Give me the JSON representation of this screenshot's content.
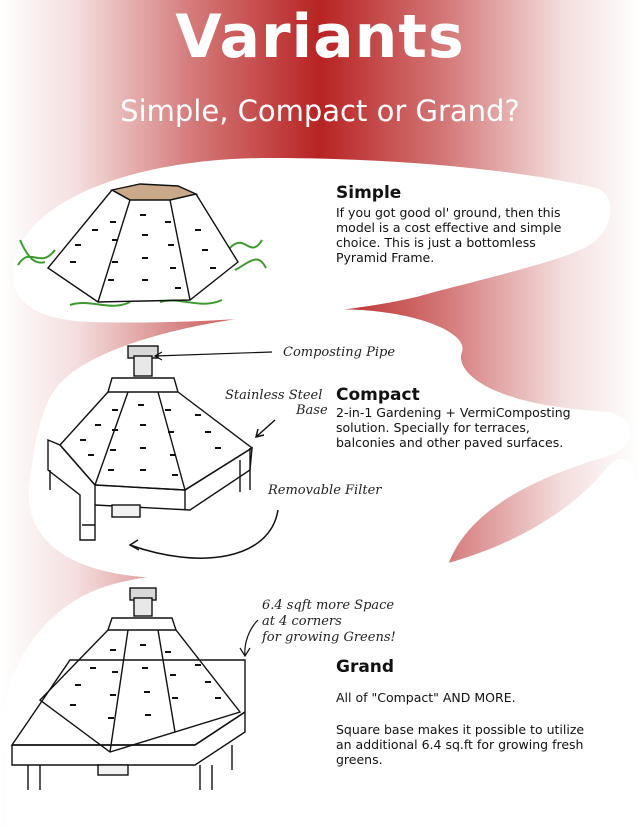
{
  "page": {
    "title": "Variants",
    "subtitle": "Simple, Compact or Grand?"
  },
  "simple": {
    "heading": "Simple",
    "description": "If you got good ol' ground, then this model is a cost effective and simple choice. This is just a bottomless Pyramid Frame."
  },
  "compact": {
    "heading": "Compact",
    "description": "2-in-1 Gardening + VermiComposting solution. Specially for terraces, balconies and other paved surfaces.",
    "label_pipe": "Composting Pipe",
    "label_base_line1": "Stainless Steel",
    "label_base_line2": "Base",
    "label_filter": "Removable Filter"
  },
  "grand": {
    "heading": "Grand",
    "paragraph1": "All of \"Compact\" AND MORE.",
    "paragraph2": "Square base makes it possible to utilize an additional 6.4 sq.ft for growing fresh greens.",
    "note_line1": "6.4 sqft more Space",
    "note_line2": "at 4 corners",
    "note_line3": "for growing Greens!"
  },
  "colors": {
    "accent": "#b82323",
    "panel": "#ffffff",
    "ink": "#111111",
    "grass": "#3d9b2e"
  }
}
